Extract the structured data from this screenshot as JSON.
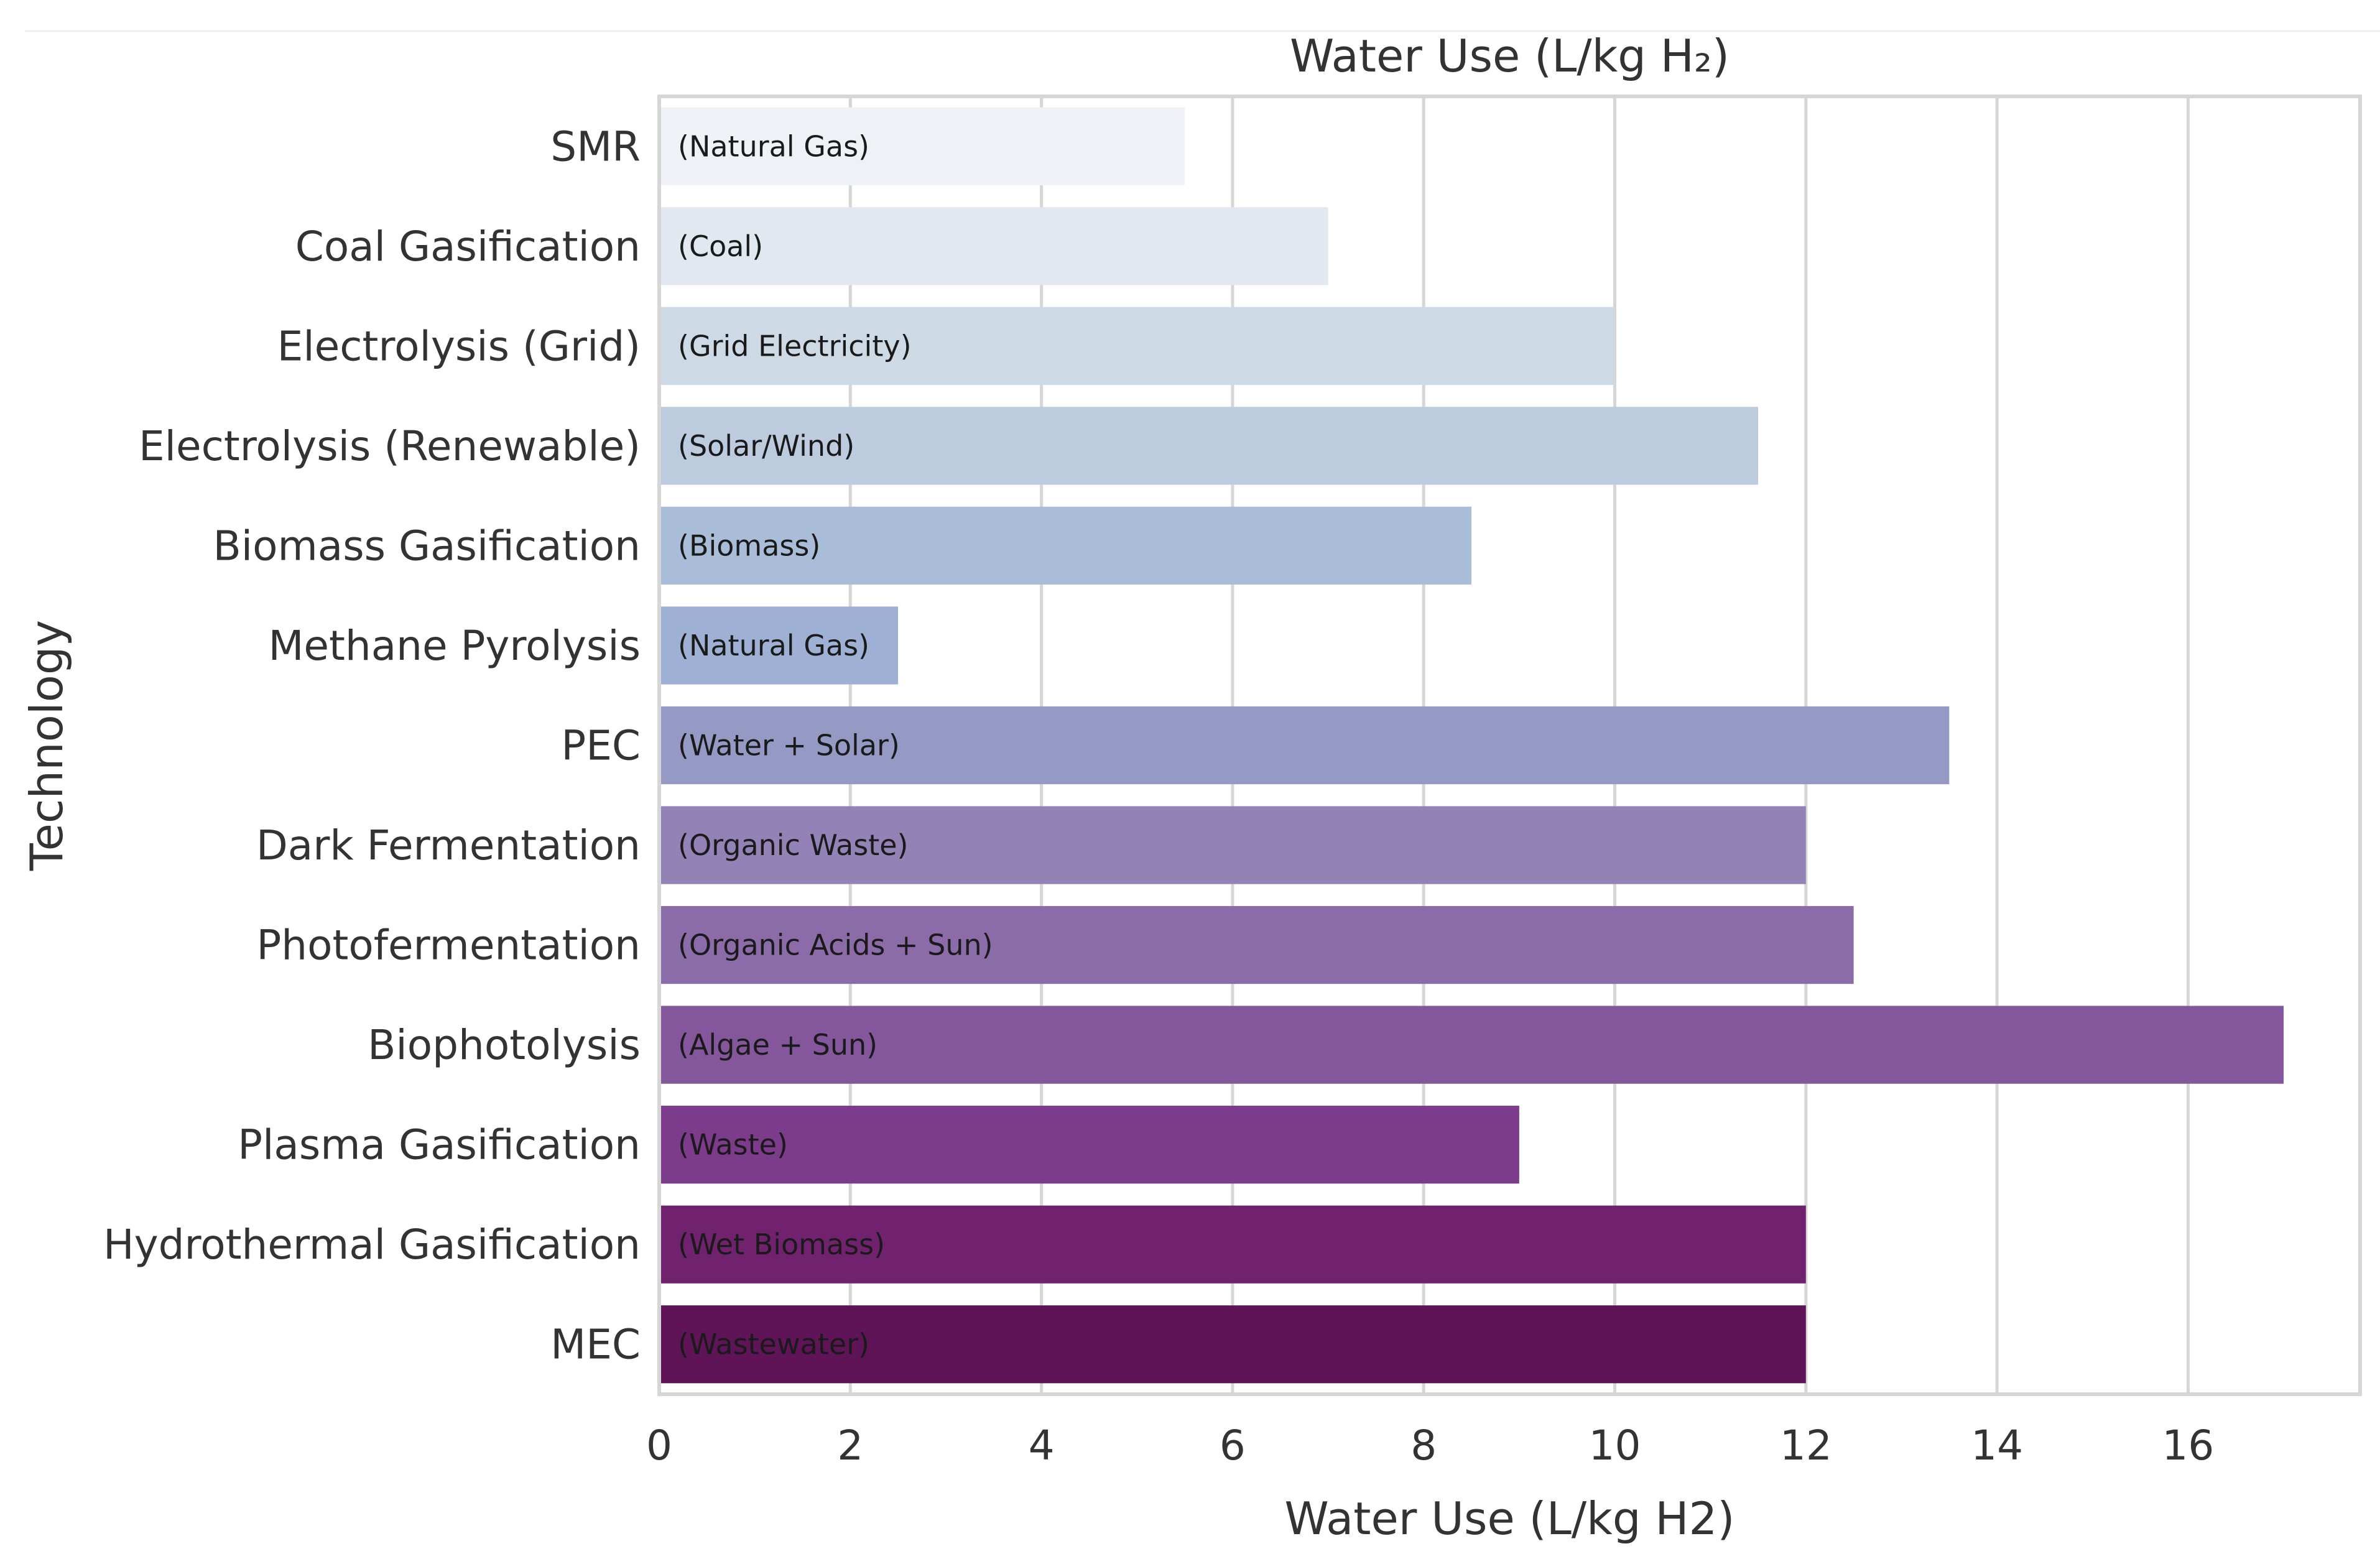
{
  "chart_data": {
    "type": "bar",
    "orientation": "horizontal",
    "title": "Water Use (L/kg H₂)",
    "xlabel": "Water Use (L/kg H2)",
    "ylabel": "Technology",
    "xlim": [
      0,
      17.8
    ],
    "xticks": [
      0,
      2,
      4,
      6,
      8,
      10,
      12,
      14,
      16
    ],
    "grid": "vertical",
    "categories": [
      "SMR",
      "Coal Gasification",
      "Electrolysis (Grid)",
      "Electrolysis (Renewable)",
      "Biomass Gasification",
      "Methane Pyrolysis",
      "PEC",
      "Dark Fermentation",
      "Photofermentation",
      "Biophotolysis",
      "Plasma Gasification",
      "Hydrothermal Gasification",
      "MEC"
    ],
    "values": [
      5.5,
      7.0,
      10.0,
      11.5,
      8.5,
      2.5,
      13.5,
      12.0,
      12.5,
      17.0,
      9.0,
      12.0,
      12.0
    ],
    "bar_labels": [
      "(Natural Gas)",
      "(Coal)",
      "(Grid Electricity)",
      "(Solar/Wind)",
      "(Biomass)",
      "(Natural Gas)",
      "(Water + Solar)",
      "(Organic Waste)",
      "(Organic Acids + Sun)",
      "(Algae + Sun)",
      "(Waste)",
      "(Wet Biomass)",
      "(Wastewater)"
    ],
    "colors": [
      "#eef2f7",
      "#e1e8f0",
      "#ced9e6",
      "#bccbdd",
      "#a9bdd8",
      "#9eb1d4",
      "#949ac3",
      "#9282b6",
      "#8c6ba9",
      "#84569b",
      "#7d3b8c",
      "#71226f",
      "#5e1457"
    ],
    "frame_color": "#d6d6d6",
    "grid_color": "#d6d6d6"
  }
}
